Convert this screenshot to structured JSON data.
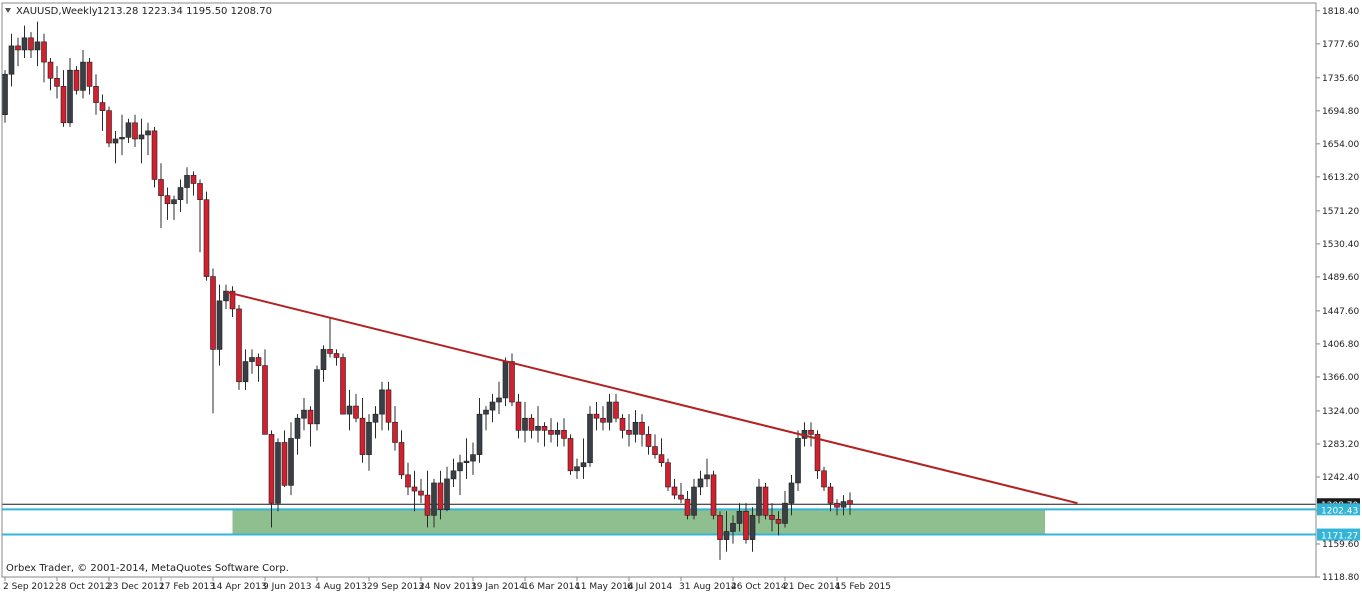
{
  "header": {
    "symbol_label": "XAUUSD,Weekly",
    "ohlc_label": "1213.28 1223.34 1195.50 1208.70",
    "triangle_icon": "triangle-down-icon"
  },
  "copyright": "Orbex Trader, © 2001-2014, MetaQuotes Software Corp.",
  "colors": {
    "background": "#ffffff",
    "bull_candle": "#3a3f45",
    "bear_candle": "#d2202f",
    "wick": "#2b2b2b",
    "trendline": "#b22222",
    "support_zone": "#8fbf8f",
    "support_line": "#33b5d8",
    "price_line": "#1a1a1a",
    "axis": "#8a8a8a"
  },
  "chart_data": {
    "type": "candlestick",
    "timeframe": "Weekly",
    "ylim": [
      1118.8,
      1828.0
    ],
    "y_ticks": [
      "1818.40",
      "1777.60",
      "1735.60",
      "1694.80",
      "1654.00",
      "1613.20",
      "1571.20",
      "1530.40",
      "1489.60",
      "1447.60",
      "1406.80",
      "1366.00",
      "1324.00",
      "1283.20",
      "1242.40",
      "1200.70",
      "1159.60",
      "1118.80"
    ],
    "x_tick_labels": [
      "2 Sep 2012",
      "28 Oct 2012",
      "23 Dec 2012",
      "17 Feb 2013",
      "14 Apr 2013",
      "9 Jun 2013",
      "4 Aug 2013",
      "29 Sep 2013",
      "24 Nov 2013",
      "19 Jan 2014",
      "16 Mar 2014",
      "11 May 2014",
      "6 Jul 2014",
      "31 Aug 2014",
      "26 Oct 2014",
      "21 Dec 2014",
      "15 Feb 2015"
    ],
    "x_tick_bars": [
      0,
      8,
      16,
      24,
      32,
      40,
      48,
      56,
      64,
      72,
      80,
      88,
      96,
      104,
      112,
      120,
      128
    ],
    "candles": [
      [
        1690,
        1745,
        1680,
        1740
      ],
      [
        1740,
        1790,
        1725,
        1775
      ],
      [
        1775,
        1785,
        1750,
        1770
      ],
      [
        1770,
        1800,
        1760,
        1785
      ],
      [
        1785,
        1792,
        1760,
        1770
      ],
      [
        1770,
        1805,
        1750,
        1780
      ],
      [
        1780,
        1790,
        1730,
        1755
      ],
      [
        1755,
        1760,
        1720,
        1735
      ],
      [
        1735,
        1750,
        1710,
        1725
      ],
      [
        1725,
        1745,
        1675,
        1680
      ],
      [
        1680,
        1760,
        1675,
        1745
      ],
      [
        1745,
        1750,
        1715,
        1720
      ],
      [
        1720,
        1770,
        1710,
        1755
      ],
      [
        1755,
        1760,
        1715,
        1725
      ],
      [
        1725,
        1740,
        1690,
        1705
      ],
      [
        1705,
        1715,
        1670,
        1695
      ],
      [
        1695,
        1700,
        1650,
        1655
      ],
      [
        1655,
        1670,
        1630,
        1660
      ],
      [
        1660,
        1690,
        1640,
        1662
      ],
      [
        1662,
        1685,
        1655,
        1680
      ],
      [
        1680,
        1690,
        1650,
        1660
      ],
      [
        1660,
        1685,
        1630,
        1665
      ],
      [
        1665,
        1680,
        1640,
        1670
      ],
      [
        1670,
        1675,
        1600,
        1610
      ],
      [
        1610,
        1630,
        1550,
        1590
      ],
      [
        1590,
        1600,
        1560,
        1580
      ],
      [
        1580,
        1590,
        1560,
        1585
      ],
      [
        1585,
        1610,
        1570,
        1600
      ],
      [
        1600,
        1625,
        1580,
        1615
      ],
      [
        1615,
        1620,
        1590,
        1605
      ],
      [
        1605,
        1610,
        1520,
        1585
      ],
      [
        1585,
        1595,
        1485,
        1490
      ],
      [
        1490,
        1500,
        1321,
        1400
      ],
      [
        1400,
        1480,
        1380,
        1460
      ],
      [
        1460,
        1480,
        1450,
        1472
      ],
      [
        1472,
        1478,
        1440,
        1450
      ],
      [
        1450,
        1455,
        1350,
        1360
      ],
      [
        1360,
        1400,
        1350,
        1385
      ],
      [
        1385,
        1400,
        1370,
        1390
      ],
      [
        1390,
        1395,
        1360,
        1380
      ],
      [
        1380,
        1400,
        1300,
        1295
      ],
      [
        1295,
        1300,
        1180,
        1210
      ],
      [
        1210,
        1290,
        1200,
        1285
      ],
      [
        1285,
        1300,
        1230,
        1232
      ],
      [
        1232,
        1310,
        1220,
        1290
      ],
      [
        1290,
        1320,
        1270,
        1315
      ],
      [
        1315,
        1340,
        1300,
        1325
      ],
      [
        1325,
        1330,
        1280,
        1308
      ],
      [
        1308,
        1380,
        1300,
        1375
      ],
      [
        1375,
        1405,
        1360,
        1400
      ],
      [
        1400,
        1440,
        1390,
        1395
      ],
      [
        1395,
        1400,
        1380,
        1390
      ],
      [
        1390,
        1395,
        1320,
        1320
      ],
      [
        1320,
        1350,
        1300,
        1330
      ],
      [
        1330,
        1345,
        1310,
        1315
      ],
      [
        1315,
        1340,
        1260,
        1270
      ],
      [
        1270,
        1320,
        1250,
        1310
      ],
      [
        1310,
        1330,
        1290,
        1320
      ],
      [
        1320,
        1360,
        1300,
        1350
      ],
      [
        1350,
        1360,
        1300,
        1310
      ],
      [
        1310,
        1330,
        1275,
        1285
      ],
      [
        1285,
        1300,
        1240,
        1245
      ],
      [
        1245,
        1260,
        1220,
        1230
      ],
      [
        1230,
        1250,
        1200,
        1225
      ],
      [
        1225,
        1240,
        1210,
        1220
      ],
      [
        1220,
        1250,
        1180,
        1195
      ],
      [
        1195,
        1240,
        1180,
        1235
      ],
      [
        1235,
        1250,
        1190,
        1202
      ],
      [
        1202,
        1255,
        1200,
        1240
      ],
      [
        1240,
        1265,
        1230,
        1250
      ],
      [
        1250,
        1270,
        1220,
        1260
      ],
      [
        1260,
        1290,
        1240,
        1262
      ],
      [
        1262,
        1285,
        1245,
        1270
      ],
      [
        1270,
        1340,
        1260,
        1320
      ],
      [
        1320,
        1330,
        1300,
        1325
      ],
      [
        1325,
        1345,
        1310,
        1335
      ],
      [
        1335,
        1360,
        1320,
        1340
      ],
      [
        1340,
        1390,
        1330,
        1385
      ],
      [
        1385,
        1395,
        1330,
        1335
      ],
      [
        1335,
        1345,
        1290,
        1300
      ],
      [
        1300,
        1335,
        1285,
        1315
      ],
      [
        1315,
        1320,
        1290,
        1300
      ],
      [
        1300,
        1330,
        1285,
        1305
      ],
      [
        1305,
        1310,
        1280,
        1300
      ],
      [
        1300,
        1315,
        1285,
        1295
      ],
      [
        1295,
        1310,
        1280,
        1300
      ],
      [
        1300,
        1315,
        1280,
        1290
      ],
      [
        1290,
        1295,
        1245,
        1250
      ],
      [
        1250,
        1265,
        1240,
        1255
      ],
      [
        1255,
        1290,
        1240,
        1260
      ],
      [
        1260,
        1330,
        1255,
        1320
      ],
      [
        1320,
        1335,
        1300,
        1315
      ],
      [
        1315,
        1330,
        1300,
        1310
      ],
      [
        1310,
        1345,
        1300,
        1335
      ],
      [
        1335,
        1345,
        1310,
        1315
      ],
      [
        1315,
        1320,
        1290,
        1300
      ],
      [
        1300,
        1320,
        1280,
        1295
      ],
      [
        1295,
        1325,
        1285,
        1310
      ],
      [
        1310,
        1320,
        1280,
        1295
      ],
      [
        1295,
        1305,
        1270,
        1280
      ],
      [
        1280,
        1295,
        1265,
        1270
      ],
      [
        1270,
        1290,
        1255,
        1260
      ],
      [
        1260,
        1265,
        1225,
        1230
      ],
      [
        1230,
        1240,
        1215,
        1220
      ],
      [
        1220,
        1235,
        1210,
        1215
      ],
      [
        1215,
        1225,
        1190,
        1195
      ],
      [
        1195,
        1240,
        1190,
        1230
      ],
      [
        1230,
        1250,
        1220,
        1240
      ],
      [
        1240,
        1265,
        1230,
        1245
      ],
      [
        1245,
        1250,
        1190,
        1195
      ],
      [
        1195,
        1200,
        1140,
        1165
      ],
      [
        1165,
        1200,
        1150,
        1175
      ],
      [
        1175,
        1195,
        1160,
        1185
      ],
      [
        1185,
        1210,
        1175,
        1200
      ],
      [
        1200,
        1210,
        1160,
        1165
      ],
      [
        1165,
        1205,
        1150,
        1195
      ],
      [
        1195,
        1240,
        1185,
        1230
      ],
      [
        1230,
        1235,
        1190,
        1195
      ],
      [
        1195,
        1210,
        1175,
        1190
      ],
      [
        1190,
        1200,
        1170,
        1185
      ],
      [
        1185,
        1225,
        1180,
        1210
      ],
      [
        1210,
        1245,
        1195,
        1235
      ],
      [
        1235,
        1300,
        1225,
        1290
      ],
      [
        1290,
        1310,
        1280,
        1300
      ],
      [
        1300,
        1310,
        1280,
        1295
      ],
      [
        1295,
        1300,
        1240,
        1250
      ],
      [
        1250,
        1255,
        1225,
        1230
      ],
      [
        1230,
        1235,
        1200,
        1210
      ],
      [
        1210,
        1215,
        1195,
        1205
      ],
      [
        1205,
        1220,
        1195,
        1212
      ],
      [
        1213.28,
        1223.34,
        1195.5,
        1208.7
      ]
    ],
    "trendline": {
      "from": {
        "bar": 34,
        "price": 1471
      },
      "to": {
        "bar": 165,
        "price": 1210
      }
    },
    "support_zone": {
      "upper": 1202.43,
      "lower": 1171.27,
      "from_bar": 35,
      "to_bar": 160
    },
    "price_line": 1208.7,
    "price_labels": [
      {
        "text": "1208.70",
        "value": 1208.7,
        "style": "dark"
      },
      {
        "text": "1202.43",
        "value": 1202.43,
        "style": "cyan"
      },
      {
        "text": "1171.27",
        "value": 1171.27,
        "style": "cyan"
      }
    ]
  }
}
